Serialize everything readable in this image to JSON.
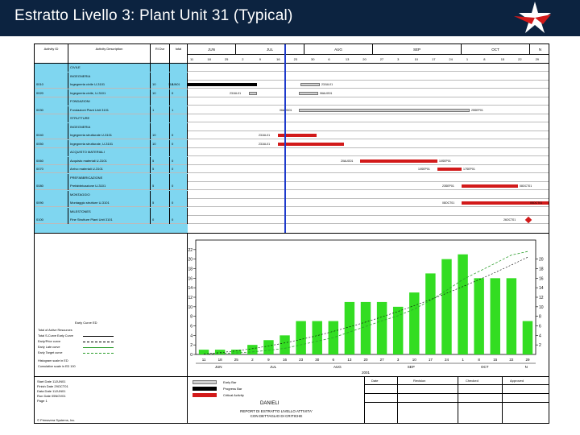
{
  "slide": {
    "title": "Estratto Livello 3: Plant Unit 31 (Typical)"
  },
  "columns": {
    "activity_id": "Activity ID",
    "description": "Activity Description",
    "duration": "Rl Dur",
    "total": "total"
  },
  "timeline": {
    "year_label": "2001",
    "months": [
      "JUN",
      "JUL",
      "AUG",
      "SEP",
      "OCT",
      "N"
    ],
    "weeks": [
      "11",
      "18",
      "25",
      "2",
      "9",
      "16",
      "23",
      "30",
      "6",
      "13",
      "20",
      "27",
      "3",
      "10",
      "17",
      "24",
      "1",
      "8",
      "15",
      "22",
      "29"
    ]
  },
  "rows": [
    {
      "type": "group",
      "id": "",
      "desc": "CIVILE",
      "dur": "",
      "tot": ""
    },
    {
      "type": "group",
      "id": "",
      "desc": "INGEGNERIA",
      "dur": "",
      "tot": ""
    },
    {
      "type": "task",
      "id": "0010",
      "desc": "Ingegneria civile U-3101",
      "dur": "10",
      "tot": "0",
      "bar": "black",
      "label_left": "11JUN01",
      "label_right": "23JUL01"
    },
    {
      "type": "task",
      "id": "0020",
      "desc": "Ingegneria civile, U-3101",
      "dur": "10",
      "tot": "0",
      "bar": "gray",
      "label_left": "23JUL01",
      "label_right": "06AUG01"
    },
    {
      "type": "group",
      "id": "",
      "desc": "FONDAZIONI",
      "dur": "",
      "tot": ""
    },
    {
      "type": "task",
      "id": "0030",
      "desc": "Fondazioni Plant Unit 3101",
      "dur": "1",
      "tot": "1",
      "bar": "gray",
      "label_left": "06AUG01",
      "label_right": "25SEP01"
    },
    {
      "type": "group",
      "id": "",
      "desc": "STRUTTURE",
      "dur": "",
      "tot": ""
    },
    {
      "type": "group",
      "id": "",
      "desc": "INGEGNERIA",
      "dur": "",
      "tot": ""
    },
    {
      "type": "task",
      "id": "0040",
      "desc": "Ingegneria strutturale U-3101",
      "dur": "10",
      "tot": "0",
      "bar": "red",
      "label_left": "23JUL01",
      "label_right": ""
    },
    {
      "type": "task",
      "id": "0050",
      "desc": "Ingegneria strutturale, U-3101",
      "dur": "10",
      "tot": "0",
      "bar": "red",
      "label_left": "23JUL01",
      "label_right": ""
    },
    {
      "type": "group",
      "id": "",
      "desc": "ACQUISTO MATERIALI",
      "dur": "",
      "tot": ""
    },
    {
      "type": "task",
      "id": "0060",
      "desc": "Acquisto materiali U-3101",
      "dur": "5",
      "tot": "0",
      "bar": "red",
      "label_left": "20AUG01",
      "label_right": "10SEP01"
    },
    {
      "type": "task",
      "id": "0070",
      "desc": "Arrivo materiali U-3101",
      "dur": "5",
      "tot": "0",
      "bar": "red",
      "label_left": "10SEP01",
      "label_right": "17SEP01"
    },
    {
      "type": "group",
      "id": "",
      "desc": "PREFABBRICAZIONE",
      "dur": "",
      "tot": ""
    },
    {
      "type": "task",
      "id": "0080",
      "desc": "Prefabbricazione U-3101",
      "dur": "5",
      "tot": "0",
      "bar": "red",
      "label_left": "23SEP01",
      "label_right": "08OCT01"
    },
    {
      "type": "group",
      "id": "",
      "desc": "MONTAGGIO",
      "dur": "",
      "tot": ""
    },
    {
      "type": "task",
      "id": "0090",
      "desc": "Montaggio strutture U-3101",
      "dur": "5",
      "tot": "0",
      "bar": "red",
      "label_left": "08OCT01",
      "label_right": "05OCT01"
    },
    {
      "type": "group",
      "id": "",
      "desc": "MILESTONES",
      "dur": "",
      "tot": ""
    },
    {
      "type": "task",
      "id": "0100",
      "desc": "Fine Strutture Plant Unit 3101",
      "dur": "0",
      "tot": "0",
      "bar": "milestone",
      "label_left": "26OCT01",
      "label_right": ""
    }
  ],
  "legend": {
    "title": "Early Curve ED",
    "items": [
      "Total of Active Resources",
      "Total S-Curve Early Curve",
      "Early/Prior curve",
      "Early Late curve",
      "Early Target curve",
      "Histogram scale in ED",
      "Cumulative scale in ED 100"
    ]
  },
  "chart_data": {
    "type": "bar",
    "x_labels": [
      "11",
      "18",
      "25",
      "2",
      "9",
      "16",
      "23",
      "30",
      "6",
      "13",
      "20",
      "27",
      "3",
      "10",
      "17",
      "24",
      "1",
      "8",
      "15",
      "22",
      "29"
    ],
    "values": [
      1,
      1,
      1,
      2,
      3,
      4,
      7,
      7,
      7,
      11,
      11,
      11,
      10,
      13,
      17,
      20,
      21,
      16,
      16,
      16,
      7
    ],
    "left_ticks": [
      0,
      2,
      4,
      6,
      8,
      10,
      12,
      14,
      16,
      18,
      20,
      22
    ],
    "right_ticks": [
      2,
      4,
      6,
      8,
      10,
      12,
      14,
      16,
      18,
      20
    ],
    "ylim": [
      0,
      24
    ],
    "bar_color": "#33dd22"
  },
  "footer": {
    "start_date": "Start Date 11JUN01",
    "finish_date": "Finish Date 29OCT01",
    "data_date": "Data Date 11JUN01",
    "run_date": "Run Date 05NOV01",
    "page": "Page 1",
    "legend_labels": [
      "Early Bar",
      "Progress Bar",
      "Critical Activity"
    ],
    "company": "DANIELI",
    "report_title": "REPORT DI ESTRATTO LIVELLO ATTIVITA' CON DETTAGLIO DI CRITICHE",
    "table_headers": [
      "Date",
      "Revision",
      "Checked",
      "Approved"
    ],
    "copyright": "© Primavera Systems, Inc."
  }
}
